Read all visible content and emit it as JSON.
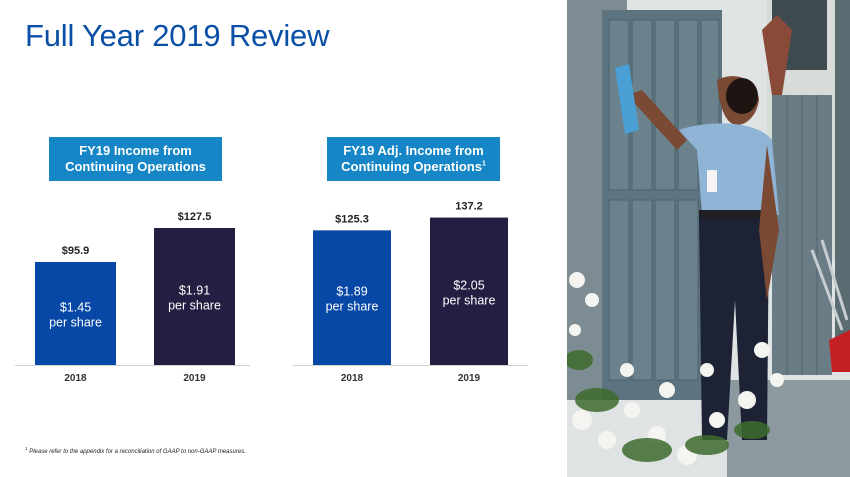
{
  "slide": {
    "title": "Full Year 2019 Review",
    "footnote_marker": "1",
    "footnote": "Please refer to the appendix for a reconciliation of GAAP to non-GAAP measures."
  },
  "colors": {
    "title": "#0a4fa6",
    "label_box": "#1686c7",
    "bar_2018": "#0747a6",
    "bar_2019": "#231f42"
  },
  "chart_data": [
    {
      "type": "bar",
      "title_lines": [
        "FY19 Income from",
        "Continuing Operations"
      ],
      "title_superscript": "",
      "categories": [
        "2018",
        "2019"
      ],
      "values": [
        95.9,
        127.5
      ],
      "value_labels": [
        "$95.9",
        "$127.5"
      ],
      "per_share_values": [
        "$1.45",
        "$1.91"
      ],
      "per_share_suffix": "per share",
      "bar_colors": [
        "#0747a6",
        "#231f42"
      ]
    },
    {
      "type": "bar",
      "title_lines": [
        "FY19 Adj. Income from",
        "Continuing Operations"
      ],
      "title_superscript": "1",
      "categories": [
        "2018",
        "2019"
      ],
      "values": [
        125.3,
        137.2
      ],
      "value_labels": [
        "$125.3",
        "137.2"
      ],
      "per_share_values": [
        "$1.89",
        "$2.05"
      ],
      "per_share_suffix": "per share",
      "bar_colors": [
        "#0747a6",
        "#231f42"
      ]
    }
  ]
}
